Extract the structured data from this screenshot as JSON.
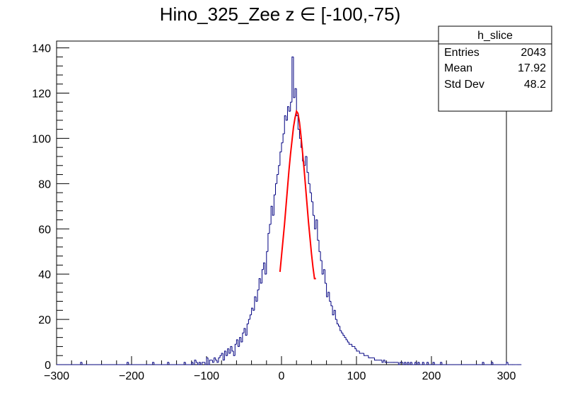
{
  "chart_data": {
    "type": "bar",
    "title": "Hino_325_Zee z  ∈ [-100,-75)",
    "xlabel": "",
    "ylabel": "",
    "xlim": [
      -300,
      300
    ],
    "ylim": [
      0,
      143
    ],
    "x_ticks": [
      -300,
      -200,
      -100,
      0,
      100,
      200,
      300
    ],
    "y_ticks": [
      0,
      20,
      40,
      60,
      80,
      100,
      120,
      140
    ],
    "grid": false,
    "legend": "none",
    "histogram": {
      "name": "h_slice",
      "bin_start": -300,
      "bin_width": 2,
      "color": "#000080",
      "counts": [
        0,
        0,
        0,
        0,
        0,
        0,
        0,
        0,
        0,
        0,
        0,
        0,
        0,
        0,
        0,
        0,
        1,
        0,
        0,
        0,
        0,
        0,
        0,
        0,
        0,
        0,
        0,
        0,
        0,
        0,
        0,
        0,
        0,
        0,
        0,
        0,
        0,
        0,
        0,
        0,
        0,
        0,
        0,
        0,
        0,
        0,
        0,
        1,
        0,
        0,
        0,
        0,
        0,
        0,
        0,
        0,
        0,
        0,
        0,
        0,
        0,
        0,
        0,
        0,
        1,
        0,
        0,
        0,
        0,
        0,
        0,
        0,
        0,
        0,
        1,
        0,
        0,
        0,
        0,
        0,
        0,
        0,
        0,
        0,
        0,
        1,
        0,
        0,
        0,
        0,
        1,
        0,
        2,
        1,
        0,
        1,
        0,
        1,
        1,
        0,
        3,
        0,
        2,
        2,
        1,
        3,
        2,
        1,
        3,
        4,
        5,
        2,
        6,
        4,
        7,
        5,
        8,
        6,
        4,
        9,
        11,
        8,
        12,
        10,
        14,
        16,
        13,
        18,
        20,
        22,
        25,
        24,
        30,
        28,
        33,
        38,
        36,
        42,
        45,
        40,
        50,
        58,
        62,
        70,
        66,
        75,
        80,
        84,
        88,
        94,
        98,
        102,
        110,
        108,
        114,
        112,
        116,
        136,
        118,
        122,
        110,
        104,
        100,
        96,
        90,
        88,
        92,
        85,
        80,
        76,
        72,
        66,
        60,
        64,
        55,
        50,
        46,
        40,
        42,
        36,
        30,
        32,
        28,
        26,
        22,
        24,
        20,
        18,
        17,
        15,
        14,
        13,
        12,
        11,
        10,
        9,
        9,
        8,
        8,
        7,
        6,
        6,
        5,
        5,
        5,
        4,
        4,
        4,
        3,
        3,
        3,
        3,
        2,
        2,
        2,
        2,
        2,
        1,
        2,
        1,
        1,
        1,
        1,
        1,
        1,
        1,
        1,
        1,
        0,
        1,
        1,
        0,
        1,
        0,
        1,
        0,
        1,
        0,
        0,
        1,
        0,
        1,
        0,
        0,
        1,
        0,
        0,
        1,
        0,
        0,
        0,
        1,
        0,
        0,
        0,
        0,
        1,
        0,
        0,
        0,
        0,
        0,
        0,
        0,
        0,
        0,
        0,
        0,
        0,
        0,
        0,
        0,
        0,
        0,
        0,
        0,
        0,
        0,
        0,
        0,
        0,
        0,
        0,
        0,
        1,
        0,
        0,
        0,
        0,
        0,
        1,
        0,
        0,
        0,
        0,
        0,
        0,
        0,
        0,
        0,
        1,
        0,
        0,
        0,
        0,
        0,
        0,
        0,
        0,
        0
      ]
    },
    "fit": {
      "color": "#ff0000",
      "x": [
        -2,
        0,
        2,
        4,
        6,
        8,
        10,
        12,
        14,
        16,
        18,
        20,
        22,
        24,
        26,
        28,
        30,
        32,
        34,
        36,
        38,
        40,
        42,
        44,
        46
      ],
      "y": [
        41,
        48,
        55,
        62,
        70,
        78,
        86,
        93,
        99,
        105,
        109,
        112,
        111,
        107,
        101,
        94,
        87,
        79,
        71,
        63,
        56,
        49,
        43,
        38,
        38
      ]
    }
  },
  "stats_box": {
    "title": "h_slice",
    "rows": [
      {
        "label": "Entries",
        "value": "2043"
      },
      {
        "label": "Mean",
        "value": "17.92"
      },
      {
        "label": "Std Dev",
        "value": "48.2"
      }
    ]
  },
  "colors": {
    "histogram": "#000080",
    "fit": "#ff0000",
    "frame": "#000000"
  }
}
